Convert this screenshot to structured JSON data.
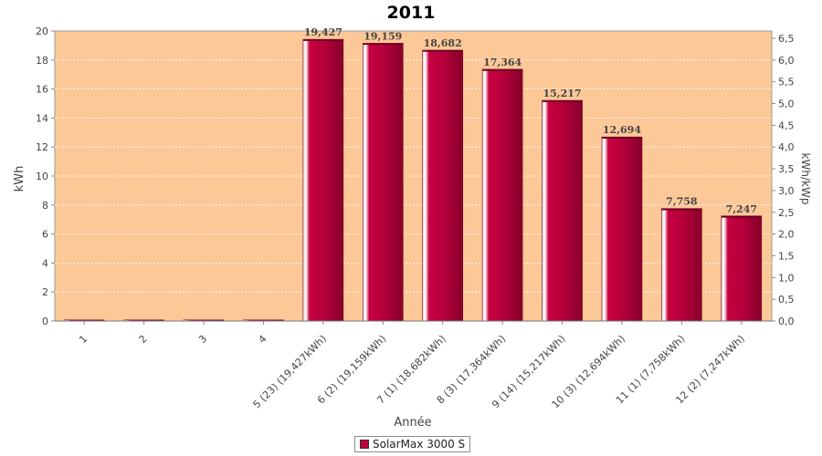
{
  "chart_data": {
    "type": "bar",
    "title": "2011",
    "xlabel": "Année",
    "ylabel": "kWh",
    "ylabel_right": "kWh/kWp",
    "categories": [
      "1",
      "2",
      "3",
      "4",
      "5 (23)  (19,427kWh)",
      "6 (2)  (19,159kWh)",
      "7 (1)  (18,682kWh)",
      "8 (3)  (17,364kWh)",
      "9 (14)  (15,217kWh)",
      "10 (3)  (12,694kWh)",
      "11 (1)  (7,758kWh)",
      "12 (2)  (7,247kWh)"
    ],
    "series": [
      {
        "name": "SolarMax 3000 S",
        "values": [
          0,
          0,
          0,
          0,
          19.427,
          19.159,
          18.682,
          17.364,
          15.217,
          12.694,
          7.758,
          7.247
        ],
        "labels": [
          "",
          "",
          "",
          "",
          "19,427",
          "19,159",
          "18,682",
          "17,364",
          "15,217",
          "12,694",
          "7,758",
          "7,247"
        ]
      }
    ],
    "ylim": [
      0,
      20
    ],
    "yticks": [
      "0",
      "2",
      "4",
      "6",
      "8",
      "10",
      "12",
      "14",
      "16",
      "18",
      "20"
    ],
    "ylim_right": [
      0,
      6.667
    ],
    "yticks_right": [
      "0,0",
      "0,5",
      "1,0",
      "1,5",
      "2,0",
      "2,5",
      "3,0",
      "3,5",
      "4,0",
      "4,5",
      "5,0",
      "5,5",
      "6,0",
      "6,5"
    ],
    "grid": true,
    "legend_position": "bottom",
    "colors": {
      "plot_background": "#fdc898",
      "bar_fill": "#c2003b",
      "bar_dark": "#8a0026",
      "grid": "#ffffff"
    }
  }
}
